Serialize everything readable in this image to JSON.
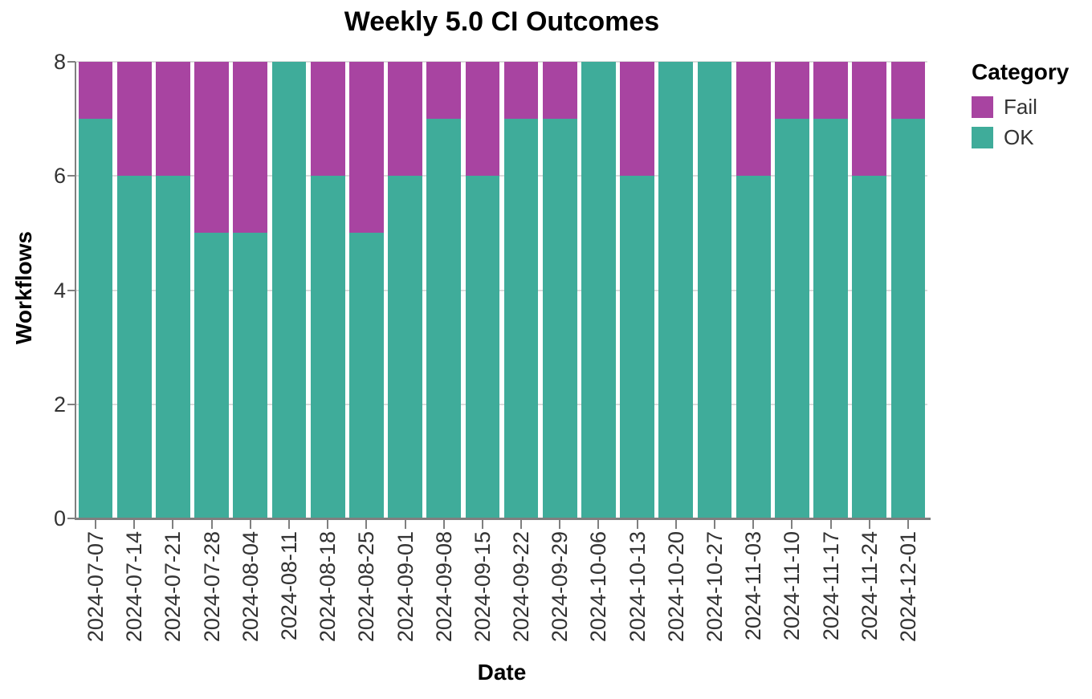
{
  "chart_data": {
    "type": "bar",
    "stacked": true,
    "title": "Weekly 5.0 CI Outcomes",
    "xlabel": "Date",
    "ylabel": "Workflows",
    "ylim": [
      0,
      8
    ],
    "yticks": [
      0,
      2,
      4,
      6,
      8
    ],
    "grid": true,
    "legend_position": "right",
    "legend_title": "Category",
    "categories": [
      "2024-07-07",
      "2024-07-14",
      "2024-07-21",
      "2024-07-28",
      "2024-08-04",
      "2024-08-11",
      "2024-08-18",
      "2024-08-25",
      "2024-09-01",
      "2024-09-08",
      "2024-09-15",
      "2024-09-22",
      "2024-09-29",
      "2024-10-06",
      "2024-10-13",
      "2024-10-20",
      "2024-10-27",
      "2024-11-03",
      "2024-11-10",
      "2024-11-17",
      "2024-11-24",
      "2024-12-01"
    ],
    "series": [
      {
        "name": "OK",
        "color": "#3FAC9A",
        "values": [
          7,
          6,
          6,
          5,
          5,
          8,
          6,
          5,
          6,
          7,
          6,
          7,
          7,
          8,
          6,
          8,
          8,
          6,
          7,
          7,
          6,
          7
        ]
      },
      {
        "name": "Fail",
        "color": "#A844A1",
        "values": [
          1,
          2,
          2,
          3,
          3,
          0,
          2,
          3,
          2,
          1,
          2,
          1,
          1,
          0,
          2,
          0,
          0,
          2,
          1,
          1,
          2,
          1
        ]
      }
    ],
    "legend_items": [
      {
        "label": "Fail",
        "color": "#A844A1"
      },
      {
        "label": "OK",
        "color": "#3FAC9A"
      }
    ],
    "colors": {
      "axis": "#7f7f7f",
      "grid": "#dcdcdc",
      "tick_label": "#333333",
      "title": "#000000"
    }
  }
}
